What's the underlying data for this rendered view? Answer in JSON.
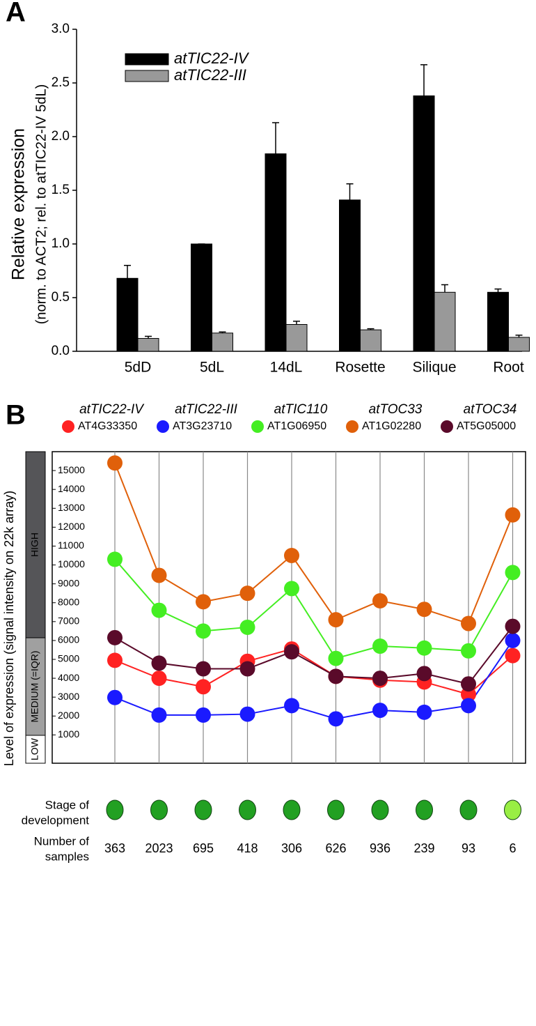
{
  "chart_data": [
    {
      "type": "bar",
      "panel": "A",
      "ylabel": [
        "Relative expression",
        "(norm. to ACT2; rel. to atTIC22-IV 5dL)"
      ],
      "categories": [
        "5dD",
        "5dL",
        "14dL",
        "Rosette",
        "Silique",
        "Root"
      ],
      "series": [
        {
          "name": "atTIC22-IV",
          "color": "#000000",
          "values": [
            0.68,
            1.0,
            1.84,
            1.41,
            2.38,
            0.55
          ],
          "errors": [
            0.12,
            0,
            0.29,
            0.15,
            0.29,
            0.03
          ]
        },
        {
          "name": "atTIC22-III",
          "color": "#999999",
          "values": [
            0.12,
            0.17,
            0.25,
            0.2,
            0.55,
            0.13
          ],
          "errors": [
            0.02,
            0.01,
            0.03,
            0.01,
            0.07,
            0.02
          ]
        }
      ],
      "ylim": [
        0,
        3
      ],
      "yticks": [
        {
          "value": 0,
          "label": "0.0"
        },
        {
          "value": 0.5,
          "label": "0.5"
        },
        {
          "value": 1,
          "label": "1.0"
        },
        {
          "value": 1.5,
          "label": "1.5"
        },
        {
          "value": 2,
          "label": "2.0"
        },
        {
          "value": 2.5,
          "label": "2.5"
        },
        {
          "value": 3,
          "label": "3.0"
        }
      ]
    },
    {
      "type": "line",
      "panel": "B",
      "ylabel": "Level of expression (signal intensity on 22k array)",
      "levels": [
        "HIGH",
        "MEDIUM (=IQR)",
        "LOW"
      ],
      "categories": [
        null,
        null,
        null,
        null,
        null,
        null,
        null,
        null,
        null,
        null
      ],
      "series": [
        {
          "name": "atTIC22-IV",
          "id": "AT4G33350",
          "color": "#ff2222",
          "values": [
            4950,
            4000,
            3550,
            4900,
            5550,
            4100,
            3900,
            3800,
            3150,
            5200
          ]
        },
        {
          "name": "atTIC22-III",
          "id": "AT3G23710",
          "color": "#1a1aff",
          "values": [
            2980,
            2050,
            2050,
            2100,
            2550,
            1850,
            2300,
            2200,
            2550,
            6000
          ]
        },
        {
          "name": "atTIC110",
          "id": "AT1G06950",
          "color": "#44ee22",
          "values": [
            10300,
            7600,
            6500,
            6700,
            8750,
            5050,
            5700,
            5600,
            5450,
            9600
          ]
        },
        {
          "name": "atTOC33",
          "id": "AT1G02280",
          "color": "#e0600a",
          "values": [
            15400,
            9450,
            8050,
            8500,
            10500,
            7100,
            8100,
            7650,
            6900,
            12650
          ]
        },
        {
          "name": "atTOC34",
          "id": "AT5G05000",
          "color": "#5a0a2a",
          "values": [
            6150,
            4800,
            4500,
            4500,
            5400,
            4100,
            4000,
            4250,
            3700,
            6750
          ]
        }
      ],
      "ylim": [
        -500,
        16000
      ],
      "yticks": [
        1000,
        2000,
        3000,
        4000,
        5000,
        6000,
        7000,
        8000,
        9000,
        10000,
        11000,
        12000,
        13000,
        14000,
        15000
      ],
      "stage_label": [
        "Stage of",
        "development"
      ],
      "samples_label": [
        "Number of",
        "samples"
      ],
      "samples": [
        363,
        2023,
        695,
        418,
        306,
        626,
        936,
        239,
        93,
        6
      ]
    }
  ]
}
